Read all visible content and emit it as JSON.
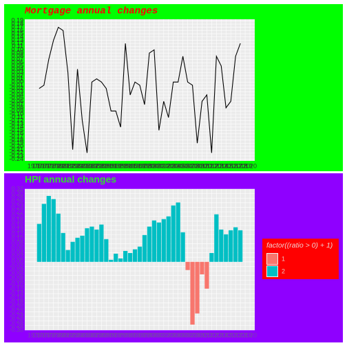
{
  "chart_data": [
    {
      "type": "line",
      "title": "Mortgage annual changes",
      "color": "#000000",
      "x": [
        1976,
        1977,
        1978,
        1979,
        1980,
        1981,
        1982,
        1983,
        1984,
        1985,
        1986,
        1987,
        1988,
        1989,
        1990,
        1991,
        1992,
        1993,
        1994,
        1995,
        1996,
        1997,
        1998,
        1999,
        2000,
        2001,
        2002,
        2003,
        2004,
        2005,
        2006,
        2007,
        2008,
        2009,
        2010,
        2011,
        2012,
        2013,
        2014,
        2015,
        2016,
        2017,
        2018
      ],
      "values": [
        -0.02,
        -0.01,
        0.07,
        0.13,
        0.17,
        0.16,
        0.03,
        -0.21,
        0.04,
        -0.12,
        -0.22,
        0.0,
        0.01,
        0.0,
        -0.02,
        -0.09,
        -0.09,
        -0.14,
        0.12,
        -0.04,
        0.0,
        -0.01,
        -0.07,
        0.09,
        0.1,
        -0.15,
        -0.06,
        -0.11,
        0.0,
        0.0,
        0.08,
        0.0,
        -0.01,
        -0.19,
        -0.06,
        -0.04,
        -0.22,
        0.08,
        0.05,
        -0.08,
        -0.06,
        0.08,
        0.12
      ],
      "xlim": [
        1973,
        2021
      ],
      "ylim": [
        -0.245,
        0.195
      ],
      "xticks": [
        1975,
        1976,
        1977,
        1978,
        1979,
        1980,
        1981,
        1982,
        1983,
        1984,
        1985,
        1986,
        1987,
        1988,
        1989,
        1990,
        1991,
        1992,
        1993,
        1994,
        1995,
        1996,
        1997,
        1998,
        1999,
        2000,
        2001,
        2002,
        2003,
        2004,
        2005,
        2006,
        2007,
        2008,
        2009,
        2010,
        2011,
        2012,
        2013,
        2014,
        2015,
        2016,
        2017,
        2018,
        2019,
        2020
      ],
      "yticks": [
        -0.24,
        -0.23,
        -0.22,
        -0.21,
        {
          "value": -0.2,
          "label": "-0.20"
        },
        -0.19,
        -0.18,
        -0.17,
        -0.16,
        -0.15,
        -0.14,
        -0.13,
        -0.12,
        -0.11,
        {
          "value": -0.1,
          "label": "-0.10"
        },
        -0.09,
        -0.08,
        -0.07,
        -0.06,
        -0.05,
        -0.04,
        -0.03,
        -0.02,
        -0.01,
        {
          "value": 0,
          "label": "0.00"
        },
        0.01,
        0.02,
        0.03,
        0.04,
        0.05,
        0.06,
        0.07,
        0.08,
        0.09,
        {
          "value": 0.1,
          "label": "0.10"
        },
        0.11,
        0.12,
        0.13,
        0.14,
        0.15,
        0.16,
        0.17,
        0.18,
        0.19
      ],
      "grid": true
    },
    {
      "type": "bar",
      "title": "HPI annual changes",
      "x": [
        1976,
        1977,
        1978,
        1979,
        1980,
        1981,
        1982,
        1983,
        1984,
        1985,
        1986,
        1987,
        1988,
        1989,
        1990,
        1991,
        1992,
        1993,
        1994,
        1995,
        1996,
        1997,
        1998,
        1999,
        2000,
        2001,
        2002,
        2003,
        2004,
        2005,
        2006,
        2007,
        2008,
        2009,
        2010,
        2011,
        2012,
        2013,
        2014,
        2015,
        2016,
        2017,
        2018
      ],
      "values": [
        0.167,
        0.255,
        0.29,
        0.276,
        0.212,
        0.127,
        0.052,
        0.088,
        0.106,
        0.115,
        0.148,
        0.155,
        0.142,
        0.164,
        0.1,
        0.009,
        0.036,
        0.015,
        0.048,
        0.039,
        0.055,
        0.067,
        0.118,
        0.155,
        0.182,
        0.173,
        0.188,
        0.2,
        0.248,
        0.261,
        0.13,
        -0.036,
        -0.276,
        -0.227,
        -0.055,
        -0.118,
        0.039,
        0.209,
        0.142,
        0.121,
        0.139,
        0.152,
        0.139
      ],
      "xlim": [
        1973,
        2021
      ],
      "ylim": [
        -0.3,
        0.32
      ],
      "xticks": [
        1975,
        1976,
        1977,
        1978,
        1979,
        1980,
        1981,
        1982,
        1983,
        1984,
        1985,
        1986,
        1987,
        1988,
        1989,
        1990,
        1991,
        1992,
        1993,
        1994,
        1995,
        1996,
        1997,
        1998,
        1999,
        2000,
        2001,
        2002,
        2003,
        2004,
        2005,
        2006,
        2007,
        2008,
        2009,
        2010,
        2011,
        2012,
        2013,
        2014,
        2015,
        2016,
        2017,
        2018,
        2019,
        2020
      ],
      "yticks": [
        {
          "value": -0.3,
          "label": "-0.30"
        },
        -0.28,
        -0.26,
        -0.24,
        -0.22,
        {
          "value": -0.2,
          "label": "-0.20"
        },
        -0.18,
        -0.16,
        -0.14,
        -0.12,
        {
          "value": -0.1,
          "label": "-0.10"
        },
        -0.08,
        -0.06,
        -0.04,
        -0.02,
        {
          "value": 0,
          "label": "0.00"
        },
        0.02,
        0.04,
        0.06,
        0.08,
        {
          "value": 0.1,
          "label": "0.10"
        },
        0.12,
        0.14,
        0.16,
        0.18,
        {
          "value": 0.2,
          "label": "0.20"
        },
        0.22,
        0.24,
        0.26,
        0.28,
        {
          "value": 0.3,
          "label": "0.30"
        },
        0.32
      ],
      "grid": true,
      "legend": {
        "title": "factor((ratio > 0) + 1)",
        "items": [
          {
            "label": "1",
            "color": "#F8766D"
          },
          {
            "label": "2",
            "color": "#00BFC4"
          }
        ]
      }
    }
  ]
}
